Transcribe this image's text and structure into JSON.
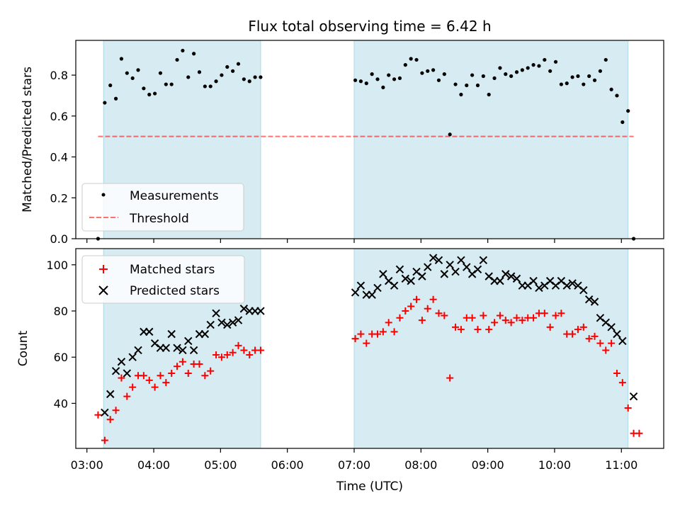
{
  "title": "Flux total observing time = 6.42 h",
  "xlabel": "Time (UTC)",
  "x_ticks": [
    "03:00",
    "04:00",
    "05:00",
    "06:00",
    "07:00",
    "08:00",
    "09:00",
    "10:00",
    "11:00"
  ],
  "colors": {
    "span": "#add8e6",
    "measurement": "#000000",
    "threshold": "#ff0000",
    "matched": "#ff0000",
    "predicted": "#000000"
  },
  "chart_data": [
    {
      "type": "scatter",
      "ylabel": "Matched/Predicted stars",
      "xlim": [
        "02:50",
        "11:38"
      ],
      "ylim": [
        0,
        0.97
      ],
      "y_ticks": [
        "0.0",
        "0.2",
        "0.4",
        "0.6",
        "0.8"
      ],
      "shaded_spans": [
        [
          "03:15",
          "05:36"
        ],
        [
          "07:00",
          "11:06"
        ]
      ],
      "legend_position": "lower-left",
      "series": [
        {
          "name": "Measurements",
          "marker": "dot",
          "points": [
            [
              "03:10",
              0.0
            ],
            [
              "03:16",
              0.665
            ],
            [
              "03:21",
              0.75
            ],
            [
              "03:26",
              0.685
            ],
            [
              "03:31",
              0.88
            ],
            [
              "03:36",
              0.81
            ],
            [
              "03:41",
              0.785
            ],
            [
              "03:46",
              0.825
            ],
            [
              "03:51",
              0.735
            ],
            [
              "03:56",
              0.705
            ],
            [
              "04:01",
              0.71
            ],
            [
              "04:06",
              0.81
            ],
            [
              "04:11",
              0.755
            ],
            [
              "04:16",
              0.755
            ],
            [
              "04:21",
              0.875
            ],
            [
              "04:26",
              0.92
            ],
            [
              "04:31",
              0.79
            ],
            [
              "04:36",
              0.905
            ],
            [
              "04:41",
              0.815
            ],
            [
              "04:46",
              0.745
            ],
            [
              "04:51",
              0.745
            ],
            [
              "04:56",
              0.77
            ],
            [
              "05:01",
              0.8
            ],
            [
              "05:06",
              0.84
            ],
            [
              "05:11",
              0.82
            ],
            [
              "05:16",
              0.855
            ],
            [
              "05:21",
              0.78
            ],
            [
              "05:26",
              0.77
            ],
            [
              "05:31",
              0.79
            ],
            [
              "05:36",
              0.79
            ],
            [
              "07:01",
              0.775
            ],
            [
              "07:06",
              0.77
            ],
            [
              "07:11",
              0.76
            ],
            [
              "07:16",
              0.805
            ],
            [
              "07:21",
              0.78
            ],
            [
              "07:26",
              0.74
            ],
            [
              "07:31",
              0.8
            ],
            [
              "07:36",
              0.78
            ],
            [
              "07:41",
              0.785
            ],
            [
              "07:46",
              0.85
            ],
            [
              "07:51",
              0.88
            ],
            [
              "07:56",
              0.875
            ],
            [
              "08:01",
              0.81
            ],
            [
              "08:06",
              0.82
            ],
            [
              "08:11",
              0.825
            ],
            [
              "08:16",
              0.775
            ],
            [
              "08:21",
              0.805
            ],
            [
              "08:26",
              0.51
            ],
            [
              "08:31",
              0.755
            ],
            [
              "08:36",
              0.705
            ],
            [
              "08:41",
              0.75
            ],
            [
              "08:46",
              0.8
            ],
            [
              "08:51",
              0.75
            ],
            [
              "08:56",
              0.795
            ],
            [
              "09:01",
              0.705
            ],
            [
              "09:06",
              0.785
            ],
            [
              "09:11",
              0.835
            ],
            [
              "09:16",
              0.805
            ],
            [
              "09:21",
              0.795
            ],
            [
              "09:26",
              0.815
            ],
            [
              "09:31",
              0.825
            ],
            [
              "09:36",
              0.835
            ],
            [
              "09:41",
              0.85
            ],
            [
              "09:46",
              0.845
            ],
            [
              "09:51",
              0.875
            ],
            [
              "09:56",
              0.82
            ],
            [
              "10:01",
              0.865
            ],
            [
              "10:06",
              0.755
            ],
            [
              "10:11",
              0.76
            ],
            [
              "10:16",
              0.79
            ],
            [
              "10:21",
              0.795
            ],
            [
              "10:26",
              0.755
            ],
            [
              "10:31",
              0.795
            ],
            [
              "10:36",
              0.775
            ],
            [
              "10:41",
              0.82
            ],
            [
              "10:46",
              0.875
            ],
            [
              "10:51",
              0.73
            ],
            [
              "10:56",
              0.7
            ],
            [
              "11:01",
              0.57
            ],
            [
              "11:06",
              0.625
            ],
            [
              "11:11",
              0.0
            ]
          ]
        },
        {
          "name": "Threshold",
          "marker": "dashed-line",
          "points": [
            [
              "03:10",
              0.5
            ],
            [
              "11:11",
              0.5
            ]
          ]
        }
      ]
    },
    {
      "type": "scatter",
      "ylabel": "Count",
      "xlim": [
        "02:50",
        "11:38"
      ],
      "ylim": [
        20.5,
        107
      ],
      "y_ticks": [
        "40",
        "60",
        "80",
        "100"
      ],
      "shaded_spans": [
        [
          "03:15",
          "05:36"
        ],
        [
          "07:00",
          "11:06"
        ]
      ],
      "legend_position": "upper-left",
      "series": [
        {
          "name": "Matched stars",
          "marker": "plus",
          "points": [
            [
              "03:10",
              35
            ],
            [
              "03:16",
              24
            ],
            [
              "03:21",
              33
            ],
            [
              "03:26",
              37
            ],
            [
              "03:31",
              51
            ],
            [
              "03:36",
              43
            ],
            [
              "03:41",
              47
            ],
            [
              "03:46",
              52
            ],
            [
              "03:51",
              52
            ],
            [
              "03:56",
              50
            ],
            [
              "04:01",
              47
            ],
            [
              "04:06",
              52
            ],
            [
              "04:11",
              49
            ],
            [
              "04:16",
              53
            ],
            [
              "04:21",
              56
            ],
            [
              "04:26",
              58
            ],
            [
              "04:31",
              53
            ],
            [
              "04:36",
              57
            ],
            [
              "04:41",
              57
            ],
            [
              "04:46",
              52
            ],
            [
              "04:51",
              54
            ],
            [
              "04:56",
              61
            ],
            [
              "05:01",
              60
            ],
            [
              "05:06",
              61
            ],
            [
              "05:11",
              62
            ],
            [
              "05:16",
              65
            ],
            [
              "05:21",
              63
            ],
            [
              "05:26",
              61
            ],
            [
              "05:31",
              63
            ],
            [
              "05:36",
              63
            ],
            [
              "07:01",
              68
            ],
            [
              "07:06",
              70
            ],
            [
              "07:11",
              66
            ],
            [
              "07:16",
              70
            ],
            [
              "07:21",
              70
            ],
            [
              "07:26",
              71
            ],
            [
              "07:31",
              75
            ],
            [
              "07:36",
              71
            ],
            [
              "07:41",
              77
            ],
            [
              "07:46",
              80
            ],
            [
              "07:51",
              82
            ],
            [
              "07:56",
              85
            ],
            [
              "08:01",
              76
            ],
            [
              "08:06",
              81
            ],
            [
              "08:11",
              85
            ],
            [
              "08:16",
              79
            ],
            [
              "08:21",
              78
            ],
            [
              "08:26",
              51
            ],
            [
              "08:31",
              73
            ],
            [
              "08:36",
              72
            ],
            [
              "08:41",
              77
            ],
            [
              "08:46",
              77
            ],
            [
              "08:51",
              72
            ],
            [
              "08:56",
              78
            ],
            [
              "09:01",
              72
            ],
            [
              "09:06",
              75
            ],
            [
              "09:11",
              78
            ],
            [
              "09:16",
              76
            ],
            [
              "09:21",
              75
            ],
            [
              "09:26",
              77
            ],
            [
              "09:31",
              76
            ],
            [
              "09:36",
              77
            ],
            [
              "09:41",
              77
            ],
            [
              "09:46",
              79
            ],
            [
              "09:51",
              79
            ],
            [
              "09:56",
              73
            ],
            [
              "10:01",
              78
            ],
            [
              "10:06",
              79
            ],
            [
              "10:11",
              70
            ],
            [
              "10:16",
              70
            ],
            [
              "10:21",
              72
            ],
            [
              "10:26",
              73
            ],
            [
              "10:31",
              68
            ],
            [
              "10:36",
              69
            ],
            [
              "10:41",
              66
            ],
            [
              "10:46",
              63
            ],
            [
              "10:51",
              66
            ],
            [
              "10:56",
              53
            ],
            [
              "11:01",
              49
            ],
            [
              "11:06",
              38
            ],
            [
              "11:11",
              27
            ],
            [
              "11:16",
              27
            ]
          ]
        },
        {
          "name": "Predicted stars",
          "marker": "x",
          "points": [
            [
              "03:16",
              36
            ],
            [
              "03:21",
              44
            ],
            [
              "03:26",
              54
            ],
            [
              "03:31",
              58
            ],
            [
              "03:36",
              53
            ],
            [
              "03:41",
              60
            ],
            [
              "03:46",
              63
            ],
            [
              "03:51",
              71
            ],
            [
              "03:56",
              71
            ],
            [
              "04:01",
              66
            ],
            [
              "04:06",
              64
            ],
            [
              "04:11",
              64
            ],
            [
              "04:16",
              70
            ],
            [
              "04:21",
              64
            ],
            [
              "04:26",
              63
            ],
            [
              "04:31",
              67
            ],
            [
              "04:36",
              63
            ],
            [
              "04:41",
              70
            ],
            [
              "04:46",
              70
            ],
            [
              "04:51",
              74
            ],
            [
              "04:56",
              79
            ],
            [
              "05:01",
              75
            ],
            [
              "05:06",
              74
            ],
            [
              "05:11",
              75
            ],
            [
              "05:16",
              76
            ],
            [
              "05:21",
              81
            ],
            [
              "05:26",
              80
            ],
            [
              "05:31",
              80
            ],
            [
              "05:36",
              80
            ],
            [
              "07:01",
              88
            ],
            [
              "07:06",
              91
            ],
            [
              "07:11",
              87
            ],
            [
              "07:16",
              87
            ],
            [
              "07:21",
              90
            ],
            [
              "07:26",
              96
            ],
            [
              "07:31",
              93
            ],
            [
              "07:36",
              91
            ],
            [
              "07:41",
              98
            ],
            [
              "07:46",
              94
            ],
            [
              "07:51",
              93
            ],
            [
              "07:56",
              97
            ],
            [
              "08:01",
              95
            ],
            [
              "08:06",
              99
            ],
            [
              "08:11",
              103
            ],
            [
              "08:16",
              102
            ],
            [
              "08:21",
              96
            ],
            [
              "08:26",
              100
            ],
            [
              "08:31",
              97
            ],
            [
              "08:36",
              102
            ],
            [
              "08:41",
              99
            ],
            [
              "08:46",
              96
            ],
            [
              "08:51",
              98
            ],
            [
              "08:56",
              102
            ],
            [
              "09:01",
              95
            ],
            [
              "09:06",
              93
            ],
            [
              "09:11",
              93
            ],
            [
              "09:16",
              96
            ],
            [
              "09:21",
              95
            ],
            [
              "09:26",
              94
            ],
            [
              "09:31",
              91
            ],
            [
              "09:36",
              91
            ],
            [
              "09:41",
              93
            ],
            [
              "09:46",
              90
            ],
            [
              "09:51",
              91
            ],
            [
              "09:56",
              93
            ],
            [
              "10:01",
              91
            ],
            [
              "10:06",
              93
            ],
            [
              "10:11",
              91
            ],
            [
              "10:16",
              92
            ],
            [
              "10:21",
              91
            ],
            [
              "10:26",
              89
            ],
            [
              "10:31",
              85
            ],
            [
              "10:36",
              84
            ],
            [
              "10:41",
              77
            ],
            [
              "10:46",
              75
            ],
            [
              "10:51",
              73
            ],
            [
              "10:56",
              70
            ],
            [
              "11:01",
              67
            ],
            [
              "11:11",
              43
            ]
          ]
        }
      ]
    }
  ]
}
